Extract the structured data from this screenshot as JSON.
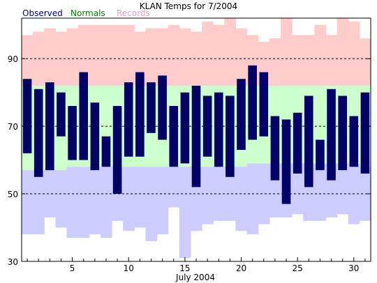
{
  "chart_data": {
    "type": "bar",
    "title": "KLAN Temps for 7/2004",
    "xlabel": "July 2004",
    "ylabel": "",
    "xlim": [
      0.5,
      31.5
    ],
    "ylim": [
      30,
      102
    ],
    "grid_lines": [
      50,
      70,
      90
    ],
    "y_ticks": [
      30,
      50,
      70,
      90
    ],
    "x_ticks": [
      5,
      10,
      15,
      20,
      25,
      30
    ],
    "legend": [
      "Observed",
      "Normals",
      "Records"
    ],
    "legend_placement": "top-left",
    "colors": {
      "observed": "#000066",
      "normals": "#ccffcc",
      "records_high": "#ffcccc",
      "records_low": "#ccccff",
      "legend_observed": "#000080",
      "legend_normals": "#008000",
      "legend_records": "#e0a0c0"
    },
    "days": [
      1,
      2,
      3,
      4,
      5,
      6,
      7,
      8,
      9,
      10,
      11,
      12,
      13,
      14,
      15,
      16,
      17,
      18,
      19,
      20,
      21,
      22,
      23,
      24,
      25,
      26,
      27,
      28,
      29,
      30,
      31
    ],
    "observed_high": [
      84,
      81,
      83,
      80,
      76,
      86,
      77,
      67,
      76,
      83,
      86,
      83,
      85,
      76,
      80,
      82,
      79,
      80,
      79,
      84,
      88,
      86,
      73,
      72,
      74,
      79,
      66,
      81,
      79,
      73,
      80
    ],
    "observed_low": [
      62,
      55,
      57,
      67,
      60,
      60,
      57,
      58,
      50,
      61,
      61,
      68,
      66,
      58,
      59,
      52,
      61,
      58,
      55,
      63,
      66,
      67,
      54,
      47,
      56,
      52,
      57,
      54,
      57,
      58,
      56
    ],
    "normal_high": [
      82,
      82,
      82,
      82,
      82,
      82,
      82,
      82,
      82,
      82,
      82,
      82,
      82,
      82,
      82,
      82,
      82,
      82,
      82,
      82,
      82,
      82,
      82,
      82,
      82,
      82,
      82,
      82,
      82,
      82,
      82
    ],
    "normal_low": [
      57,
      57,
      57,
      57,
      58,
      58,
      58,
      58,
      58,
      58,
      58,
      58,
      58,
      58,
      58,
      58,
      58,
      58,
      58,
      58,
      59,
      59,
      59,
      59,
      59,
      59,
      59,
      59,
      59,
      59,
      58
    ],
    "record_high": [
      97,
      98,
      99,
      98,
      99,
      100,
      100,
      100,
      100,
      100,
      98,
      99,
      99,
      100,
      99,
      98,
      101,
      100,
      102,
      99,
      97,
      95,
      96,
      102,
      97,
      97,
      100,
      97,
      102,
      101,
      96
    ],
    "record_low": [
      38,
      38,
      43,
      40,
      37,
      37,
      38,
      37,
      42,
      39,
      40,
      36,
      38,
      46,
      31,
      39,
      41,
      42,
      42,
      39,
      38,
      41,
      43,
      43,
      44,
      42,
      42,
      43,
      44,
      41,
      42
    ]
  }
}
